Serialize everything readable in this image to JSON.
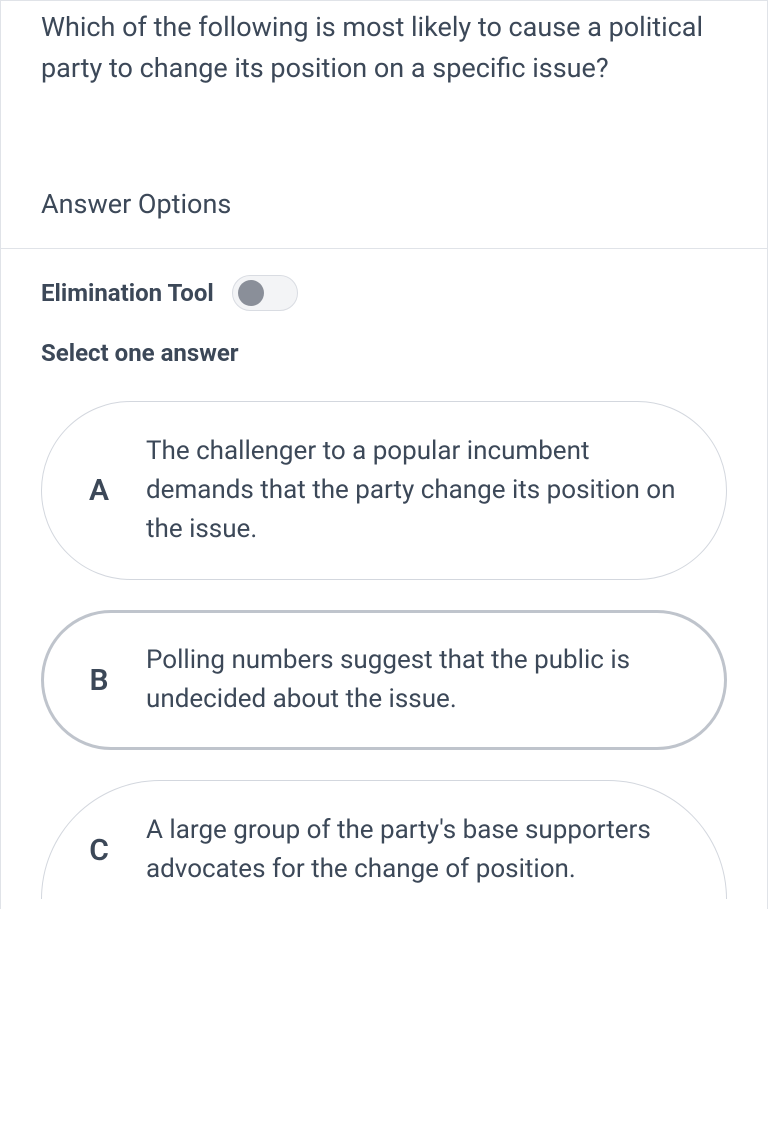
{
  "question": "Which of the following is most likely to cause a political party to change its position on a specific issue?",
  "answer_options_header": "Answer Options",
  "elimination_tool_label": "Elimination Tool",
  "elimination_tool_on": false,
  "instruction": "Select one answer",
  "options": [
    {
      "letter": "A",
      "text": "The challenger to a popular incumbent demands that the party change its position on the issue.",
      "selected": false
    },
    {
      "letter": "B",
      "text": "Polling numbers suggest that the public is undecided about the issue.",
      "selected": true
    },
    {
      "letter": "C",
      "text": "A large group of the party's base supporters advocates for the change of position.",
      "selected": false
    }
  ],
  "colors": {
    "text": "#3c4858",
    "border": "#e0e3e8",
    "option_border": "#d3d7de",
    "option_selected_border": "#bfc4cc",
    "toggle_bg": "#f3f4f6",
    "toggle_border": "#d9dce2",
    "toggle_knob": "#8a8f99",
    "background": "#ffffff"
  }
}
